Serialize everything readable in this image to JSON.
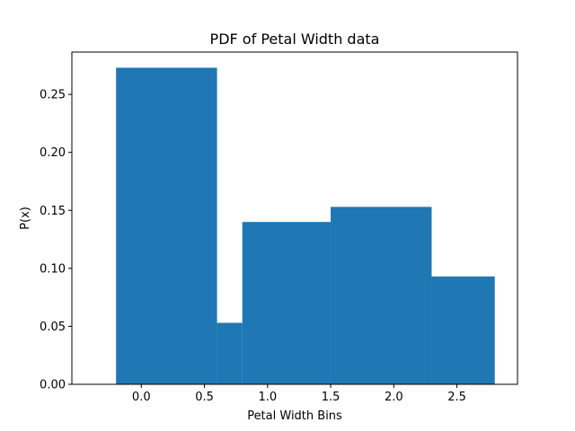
{
  "chart_data": {
    "type": "bar",
    "title": "PDF of Petal Width data",
    "xlabel": "Petal Width Bins",
    "ylabel": "P(x)",
    "bins": [
      {
        "left": -0.2,
        "right": 0.6,
        "value": 0.273
      },
      {
        "left": 0.6,
        "right": 0.8,
        "value": 0.053
      },
      {
        "left": 0.8,
        "right": 1.5,
        "value": 0.14
      },
      {
        "left": 1.5,
        "right": 2.3,
        "value": 0.153
      },
      {
        "left": 2.3,
        "right": 2.8,
        "value": 0.093
      }
    ],
    "xlim": [
      -0.55,
      2.98
    ],
    "ylim": [
      0,
      0.2865
    ],
    "xticks": [
      0.0,
      0.5,
      1.0,
      1.5,
      2.0,
      2.5
    ],
    "xtick_labels": [
      "0.0",
      "0.5",
      "1.0",
      "1.5",
      "2.0",
      "2.5"
    ],
    "yticks": [
      0.0,
      0.05,
      0.1,
      0.15,
      0.2,
      0.25
    ],
    "ytick_labels": [
      "0.00",
      "0.05",
      "0.10",
      "0.15",
      "0.20",
      "0.25"
    ],
    "grid": false,
    "colors": {
      "bar": "#1f77b4",
      "axes": "#000000",
      "background": "#ffffff"
    }
  }
}
